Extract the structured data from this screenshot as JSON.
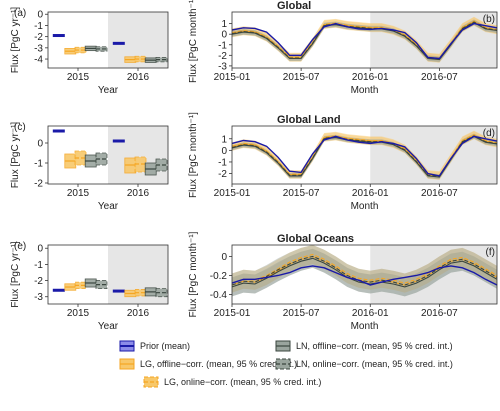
{
  "colors": {
    "prior": "#1a1aa8",
    "lg": "#f5a623",
    "lg_fill": "#f8c86a",
    "ln": "#3a463f",
    "ln_fill": "#9aa59e",
    "shade": "#e6e6e6",
    "axis": "#333333"
  },
  "legend": {
    "position": "bottom",
    "items": [
      {
        "key": "prior",
        "label": "Prior (mean)"
      },
      {
        "key": "lg_off",
        "label": "LG, offline−corr. (mean, 95 % cred. int.)"
      },
      {
        "key": "lg_on",
        "label": "LG, online−corr. (mean, 95 % cred. int.)"
      },
      {
        "key": "ln_off",
        "label": "LN, offline−corr. (mean, 95 % cred. int.)"
      },
      {
        "key": "ln_on",
        "label": "LN, online−corr. (mean, 95 % cred. int.)"
      }
    ]
  },
  "chart_data": [
    {
      "id": "a",
      "panel_label": "(a)",
      "type": "bar",
      "title": "",
      "xlabel": "Year",
      "ylabel": "Flux [PgC yr⁻¹]",
      "categories": [
        "2015",
        "2016"
      ],
      "shaded_category": "2016",
      "ylim": [
        -4.8,
        0.2
      ],
      "yticks": [
        0,
        -1,
        -2,
        -3,
        -4
      ],
      "series": [
        {
          "key": "prior",
          "values": [
            -1.9,
            -2.6
          ]
        },
        {
          "key": "lg_off",
          "values": [
            -3.3,
            -4.05
          ],
          "lo": [
            -3.55,
            -4.3
          ],
          "hi": [
            -3.05,
            -3.8
          ]
        },
        {
          "key": "lg_on",
          "values": [
            -3.2,
            -4.0
          ],
          "lo": [
            -3.45,
            -4.25
          ],
          "hi": [
            -2.95,
            -3.75
          ]
        },
        {
          "key": "ln_off",
          "values": [
            -3.05,
            -4.1
          ],
          "lo": [
            -3.25,
            -4.3
          ],
          "hi": [
            -2.85,
            -3.9
          ]
        },
        {
          "key": "ln_on",
          "values": [
            -3.1,
            -4.05
          ],
          "lo": [
            -3.3,
            -4.25
          ],
          "hi": [
            -2.9,
            -3.85
          ]
        }
      ]
    },
    {
      "id": "b",
      "panel_label": "(b)",
      "type": "line",
      "title": "Global",
      "xlabel": "Month",
      "ylabel": "Flux [PgC month⁻¹]",
      "x": [
        "2015-01",
        "2015-02",
        "2015-03",
        "2015-04",
        "2015-05",
        "2015-06",
        "2015-07",
        "2015-08",
        "2015-09",
        "2015-10",
        "2015-11",
        "2015-12",
        "2016-01",
        "2016-02",
        "2016-03",
        "2016-04",
        "2016-05",
        "2016-06",
        "2016-07",
        "2016-08",
        "2016-09",
        "2016-10",
        "2016-11",
        "2016-12"
      ],
      "xticks": [
        "2015-01",
        "2015-07",
        "2016-01",
        "2016-07"
      ],
      "shade_from": "2016-01",
      "ylim": [
        -3.2,
        2.1
      ],
      "yticks": [
        1,
        0,
        -1,
        -2,
        -3
      ],
      "series": [
        {
          "key": "prior",
          "values": [
            0.4,
            0.6,
            0.55,
            0.2,
            -0.8,
            -2.0,
            -2.0,
            -0.5,
            0.7,
            1.0,
            0.7,
            0.5,
            0.45,
            0.55,
            0.4,
            0.15,
            -0.8,
            -2.2,
            -2.3,
            -0.9,
            0.4,
            1.0,
            0.8,
            0.6
          ]
        },
        {
          "key": "lg_off",
          "values": [
            0.1,
            0.3,
            0.2,
            -0.3,
            -1.2,
            -2.2,
            -2.2,
            -0.8,
            0.9,
            1.0,
            0.8,
            0.7,
            0.6,
            0.6,
            0.35,
            -0.1,
            -1.0,
            -2.2,
            -2.3,
            -0.9,
            0.6,
            1.2,
            0.6,
            0.4
          ],
          "band": 0.4
        },
        {
          "key": "lg_on",
          "values": [
            0.15,
            0.35,
            0.25,
            -0.25,
            -1.15,
            -2.15,
            -2.15,
            -0.75,
            0.95,
            1.05,
            0.85,
            0.75,
            0.65,
            0.65,
            0.4,
            -0.05,
            -0.95,
            -2.15,
            -2.25,
            -0.85,
            0.65,
            1.25,
            0.65,
            0.45
          ],
          "band": 0.4
        },
        {
          "key": "ln_off",
          "values": [
            0.0,
            0.2,
            0.1,
            -0.4,
            -1.3,
            -2.3,
            -2.3,
            -0.9,
            0.8,
            0.9,
            0.7,
            0.6,
            0.5,
            0.5,
            0.3,
            -0.2,
            -1.1,
            -2.3,
            -2.4,
            -1.0,
            0.5,
            1.1,
            0.5,
            0.35
          ],
          "band": 0.25
        },
        {
          "key": "ln_on",
          "values": [
            0.05,
            0.25,
            0.15,
            -0.35,
            -1.25,
            -2.25,
            -2.25,
            -0.85,
            0.85,
            0.95,
            0.75,
            0.65,
            0.55,
            0.55,
            0.32,
            -0.15,
            -1.05,
            -2.25,
            -2.35,
            -0.95,
            0.55,
            1.15,
            0.55,
            0.38
          ],
          "band": 0.25
        }
      ]
    },
    {
      "id": "c",
      "panel_label": "(c)",
      "type": "bar",
      "title": "",
      "xlabel": "Year",
      "ylabel": "Flux [PgC yr⁻¹]",
      "categories": [
        "2015",
        "2016"
      ],
      "shaded_category": "2016",
      "ylim": [
        -2.05,
        0.85
      ],
      "yticks": [
        0,
        -1,
        -2
      ],
      "series": [
        {
          "key": "prior",
          "values": [
            0.6,
            0.1
          ]
        },
        {
          "key": "lg_off",
          "values": [
            -0.9,
            -1.1
          ],
          "lo": [
            -1.25,
            -1.5
          ],
          "hi": [
            -0.55,
            -0.75
          ]
        },
        {
          "key": "lg_on",
          "values": [
            -0.75,
            -1.05
          ],
          "lo": [
            -1.1,
            -1.45
          ],
          "hi": [
            -0.4,
            -0.7
          ]
        },
        {
          "key": "ln_off",
          "values": [
            -0.9,
            -1.3
          ],
          "lo": [
            -1.2,
            -1.6
          ],
          "hi": [
            -0.6,
            -1.0
          ]
        },
        {
          "key": "ln_on",
          "values": [
            -0.8,
            -1.1
          ],
          "lo": [
            -1.1,
            -1.4
          ],
          "hi": [
            -0.5,
            -0.8
          ]
        }
      ]
    },
    {
      "id": "d",
      "panel_label": "(d)",
      "type": "line",
      "title": "Global Land",
      "xlabel": "Month",
      "ylabel": "Flux [PgC month⁻¹]",
      "x": [
        "2015-01",
        "2015-02",
        "2015-03",
        "2015-04",
        "2015-05",
        "2015-06",
        "2015-07",
        "2015-08",
        "2015-09",
        "2015-10",
        "2015-11",
        "2015-12",
        "2016-01",
        "2016-02",
        "2016-03",
        "2016-04",
        "2016-05",
        "2016-06",
        "2016-07",
        "2016-08",
        "2016-09",
        "2016-10",
        "2016-11",
        "2016-12"
      ],
      "xticks": [
        "2015-01",
        "2015-07",
        "2016-01",
        "2016-07"
      ],
      "shade_from": "2016-01",
      "ylim": [
        -2.9,
        2.1
      ],
      "yticks": [
        1,
        0,
        -1,
        -2
      ],
      "series": [
        {
          "key": "prior",
          "values": [
            0.6,
            0.85,
            0.75,
            0.35,
            -0.6,
            -1.8,
            -1.9,
            -0.3,
            0.9,
            1.2,
            0.9,
            0.7,
            0.6,
            0.75,
            0.6,
            0.3,
            -0.7,
            -2.0,
            -2.2,
            -0.7,
            0.6,
            1.2,
            1.0,
            0.8
          ]
        },
        {
          "key": "lg_off",
          "values": [
            0.3,
            0.55,
            0.45,
            -0.1,
            -1.0,
            -2.1,
            -2.1,
            -0.6,
            1.1,
            1.2,
            1.0,
            0.9,
            0.8,
            0.8,
            0.55,
            0.1,
            -0.9,
            -2.1,
            -2.2,
            -0.7,
            0.8,
            1.3,
            0.8,
            0.6
          ],
          "band": 0.35
        },
        {
          "key": "lg_on",
          "values": [
            0.35,
            0.6,
            0.5,
            -0.05,
            -0.95,
            -2.05,
            -2.05,
            -0.55,
            1.15,
            1.25,
            1.05,
            0.95,
            0.85,
            0.85,
            0.6,
            0.15,
            -0.85,
            -2.05,
            -2.15,
            -0.65,
            0.85,
            1.35,
            0.85,
            0.65
          ],
          "band": 0.35
        },
        {
          "key": "ln_off",
          "values": [
            0.2,
            0.45,
            0.35,
            -0.2,
            -1.1,
            -2.2,
            -2.2,
            -0.7,
            1.0,
            1.1,
            0.9,
            0.8,
            0.7,
            0.7,
            0.5,
            0.0,
            -1.0,
            -2.2,
            -2.3,
            -0.8,
            0.7,
            1.2,
            0.7,
            0.55
          ],
          "band": 0.2
        },
        {
          "key": "ln_on",
          "values": [
            0.25,
            0.5,
            0.4,
            -0.15,
            -1.05,
            -2.15,
            -2.15,
            -0.65,
            1.05,
            1.15,
            0.95,
            0.85,
            0.75,
            0.75,
            0.52,
            0.05,
            -0.95,
            -2.15,
            -2.25,
            -0.75,
            0.75,
            1.25,
            0.75,
            0.58
          ],
          "band": 0.2
        }
      ]
    },
    {
      "id": "e",
      "panel_label": "(e)",
      "type": "bar",
      "title": "",
      "xlabel": "Year",
      "ylabel": "Flux [PgC yr⁻¹]",
      "categories": [
        "2015",
        "2016"
      ],
      "shaded_category": "2016",
      "ylim": [
        -3.45,
        0.2
      ],
      "yticks": [
        0,
        -1,
        -2,
        -3
      ],
      "series": [
        {
          "key": "prior",
          "values": [
            -2.6,
            -2.65
          ]
        },
        {
          "key": "lg_off",
          "values": [
            -2.4,
            -2.8
          ],
          "lo": [
            -2.6,
            -3.0
          ],
          "hi": [
            -2.2,
            -2.6
          ]
        },
        {
          "key": "lg_on",
          "values": [
            -2.3,
            -2.75
          ],
          "lo": [
            -2.5,
            -2.95
          ],
          "hi": [
            -2.1,
            -2.55
          ]
        },
        {
          "key": "ln_off",
          "values": [
            -2.15,
            -2.7
          ],
          "lo": [
            -2.4,
            -2.95
          ],
          "hi": [
            -1.9,
            -2.45
          ]
        },
        {
          "key": "ln_on",
          "values": [
            -2.25,
            -2.75
          ],
          "lo": [
            -2.5,
            -3.0
          ],
          "hi": [
            -2.0,
            -2.5
          ]
        }
      ]
    },
    {
      "id": "f",
      "panel_label": "(f)",
      "type": "line",
      "title": "Global Oceans",
      "xlabel": "Month",
      "ylabel": "Flux [PgC month⁻¹]",
      "x": [
        "2015-01",
        "2015-02",
        "2015-03",
        "2015-04",
        "2015-05",
        "2015-06",
        "2015-07",
        "2015-08",
        "2015-09",
        "2015-10",
        "2015-11",
        "2015-12",
        "2016-01",
        "2016-02",
        "2016-03",
        "2016-04",
        "2016-05",
        "2016-06",
        "2016-07",
        "2016-08",
        "2016-09",
        "2016-10",
        "2016-11",
        "2016-12"
      ],
      "xticks": [
        "2015-01",
        "2015-07",
        "2016-01",
        "2016-07"
      ],
      "shade_from": "2016-01",
      "ylim": [
        -0.5,
        0.12
      ],
      "yticks": [
        0.0,
        -0.2,
        -0.4
      ],
      "series": [
        {
          "key": "prior",
          "values": [
            -0.28,
            -0.24,
            -0.24,
            -0.22,
            -0.2,
            -0.17,
            -0.12,
            -0.1,
            -0.12,
            -0.17,
            -0.22,
            -0.25,
            -0.3,
            -0.27,
            -0.24,
            -0.22,
            -0.2,
            -0.17,
            -0.12,
            -0.1,
            -0.12,
            -0.17,
            -0.24,
            -0.3
          ]
        },
        {
          "key": "lg_off",
          "values": [
            -0.3,
            -0.26,
            -0.27,
            -0.22,
            -0.15,
            -0.08,
            -0.03,
            0.0,
            -0.05,
            -0.12,
            -0.2,
            -0.25,
            -0.27,
            -0.25,
            -0.27,
            -0.3,
            -0.26,
            -0.2,
            -0.12,
            -0.05,
            -0.03,
            -0.08,
            -0.15,
            -0.22
          ],
          "band": 0.08
        },
        {
          "key": "lg_on",
          "values": [
            -0.28,
            -0.24,
            -0.25,
            -0.2,
            -0.13,
            -0.06,
            -0.01,
            0.02,
            -0.03,
            -0.1,
            -0.18,
            -0.23,
            -0.25,
            -0.23,
            -0.25,
            -0.28,
            -0.24,
            -0.18,
            -0.1,
            -0.03,
            -0.01,
            -0.06,
            -0.13,
            -0.2
          ],
          "band": 0.1
        },
        {
          "key": "ln_off",
          "values": [
            -0.32,
            -0.28,
            -0.29,
            -0.23,
            -0.16,
            -0.1,
            -0.05,
            -0.02,
            -0.07,
            -0.14,
            -0.22,
            -0.27,
            -0.29,
            -0.27,
            -0.29,
            -0.32,
            -0.28,
            -0.22,
            -0.14,
            -0.07,
            -0.05,
            -0.1,
            -0.17,
            -0.24
          ],
          "band": 0.1
        },
        {
          "key": "ln_on",
          "values": [
            -0.3,
            -0.26,
            -0.27,
            -0.21,
            -0.14,
            -0.08,
            -0.03,
            0.0,
            -0.05,
            -0.12,
            -0.2,
            -0.25,
            -0.27,
            -0.25,
            -0.27,
            -0.3,
            -0.26,
            -0.2,
            -0.12,
            -0.05,
            -0.03,
            -0.08,
            -0.15,
            -0.22
          ],
          "band": 0.12
        }
      ]
    }
  ]
}
